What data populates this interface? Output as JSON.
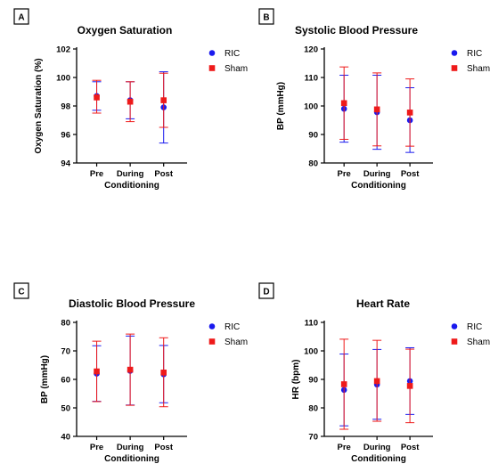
{
  "colors": {
    "ric": "#1a1aee",
    "sham": "#ee1a1a",
    "axis": "#000000"
  },
  "chart_data": [
    {
      "panel": "A",
      "type": "scatter",
      "title": "Oxygen Saturation",
      "xlabel": "Conditioning",
      "ylabel": "Oxygen Saturation (%)",
      "categories": [
        "Pre",
        "During",
        "Post"
      ],
      "ylim": [
        94,
        102
      ],
      "yticks": [
        94,
        96,
        98,
        100,
        102
      ],
      "grid": false,
      "legend": "top-right",
      "series": [
        {
          "name": "RIC",
          "marker": "circle",
          "values": [
            98.7,
            98.4,
            97.9
          ],
          "err_low": [
            97.7,
            97.1,
            95.4
          ],
          "err_high": [
            99.7,
            99.7,
            100.4
          ]
        },
        {
          "name": "Sham",
          "marker": "square",
          "values": [
            98.6,
            98.3,
            98.4
          ],
          "err_low": [
            97.5,
            96.9,
            96.5
          ],
          "err_high": [
            99.8,
            99.7,
            100.3
          ]
        }
      ]
    },
    {
      "panel": "B",
      "type": "scatter",
      "title": "Systolic Blood Pressure",
      "xlabel": "Conditioning",
      "ylabel": "BP (mmHg)",
      "categories": [
        "Pre",
        "During",
        "Post"
      ],
      "ylim": [
        80,
        120
      ],
      "yticks": [
        80,
        90,
        100,
        110,
        120
      ],
      "grid": false,
      "legend": "top-right",
      "series": [
        {
          "name": "RIC",
          "marker": "circle",
          "values": [
            99.0,
            97.8,
            95.0
          ],
          "err_low": [
            87.3,
            84.8,
            83.7
          ],
          "err_high": [
            110.8,
            110.8,
            106.4
          ]
        },
        {
          "name": "Sham",
          "marker": "square",
          "values": [
            101.0,
            98.8,
            97.7
          ],
          "err_low": [
            88.3,
            86.0,
            85.9
          ],
          "err_high": [
            113.7,
            111.6,
            109.5
          ]
        }
      ]
    },
    {
      "panel": "C",
      "type": "scatter",
      "title": "Diastolic Blood Pressure",
      "xlabel": "Conditioning",
      "ylabel": "BP (mmHg)",
      "categories": [
        "Pre",
        "During",
        "Post"
      ],
      "ylim": [
        40,
        80
      ],
      "yticks": [
        40,
        50,
        60,
        70,
        80
      ],
      "grid": false,
      "legend": "top-right",
      "series": [
        {
          "name": "RIC",
          "marker": "circle",
          "values": [
            62.0,
            63.0,
            61.8
          ],
          "err_low": [
            52.3,
            51.0,
            51.8
          ],
          "err_high": [
            71.8,
            75.2,
            71.9
          ]
        },
        {
          "name": "Sham",
          "marker": "square",
          "values": [
            62.8,
            63.4,
            62.4
          ],
          "err_low": [
            52.2,
            50.9,
            50.4
          ],
          "err_high": [
            73.4,
            75.9,
            74.6
          ]
        }
      ]
    },
    {
      "panel": "D",
      "type": "scatter",
      "title": "Heart Rate",
      "xlabel": "Conditioning",
      "ylabel": "HR (bpm)",
      "categories": [
        "Pre",
        "During",
        "Post"
      ],
      "ylim": [
        70,
        110
      ],
      "yticks": [
        70,
        80,
        90,
        100,
        110
      ],
      "grid": false,
      "legend": "top-right",
      "series": [
        {
          "name": "RIC",
          "marker": "circle",
          "values": [
            86.3,
            88.2,
            89.4
          ],
          "err_low": [
            73.7,
            76.0,
            77.7
          ],
          "err_high": [
            98.9,
            100.5,
            101.1
          ]
        },
        {
          "name": "Sham",
          "marker": "square",
          "values": [
            88.3,
            89.4,
            87.7
          ],
          "err_low": [
            72.5,
            75.3,
            74.8
          ],
          "err_high": [
            104.1,
            103.7,
            100.6
          ]
        }
      ]
    }
  ]
}
